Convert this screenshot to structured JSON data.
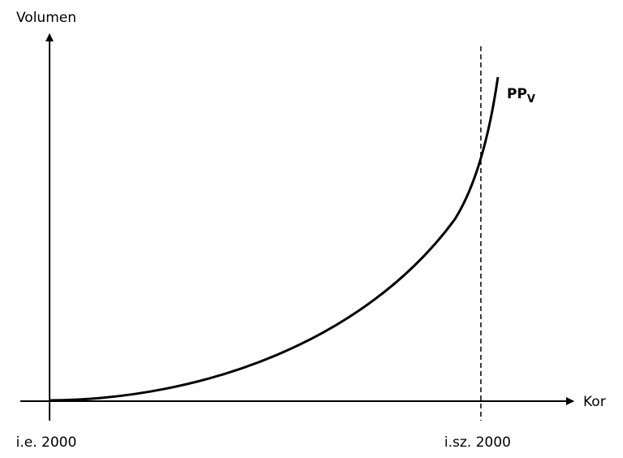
{
  "axes": {
    "y_label": "Volumen",
    "x_label": "Kor"
  },
  "x_labels": [
    "i.e. 2000",
    "i.sz. 2000"
  ],
  "curve": {
    "label": "PP",
    "subscript": "V"
  }
}
